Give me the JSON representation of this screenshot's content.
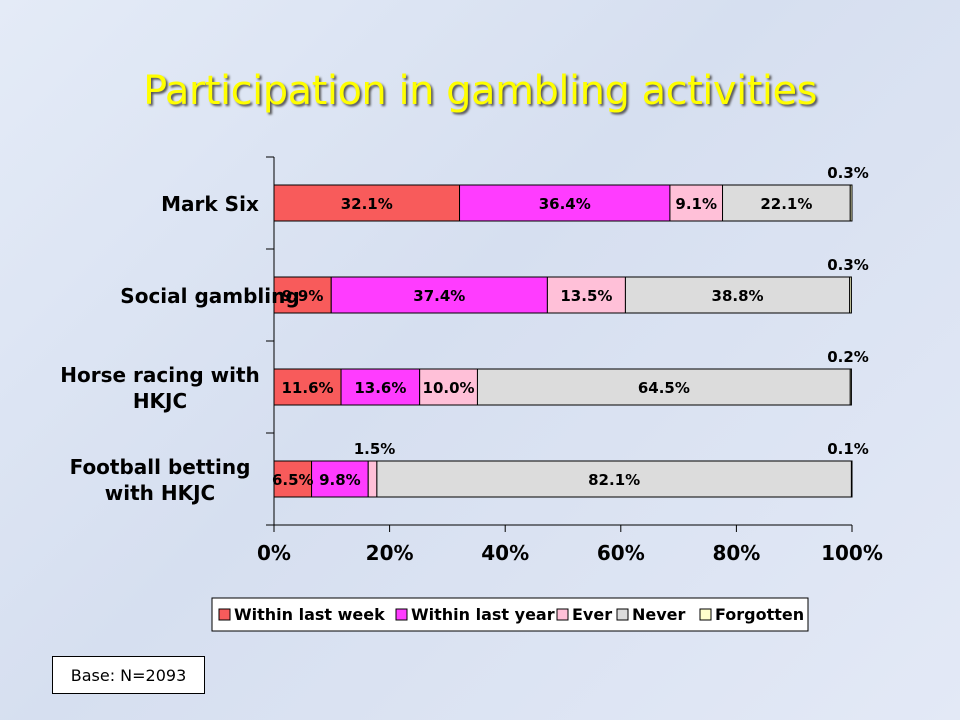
{
  "slide": {
    "title": "Participation in gambling activities",
    "base_note": "Base: N=2093"
  },
  "chart_data": {
    "type": "bar",
    "orientation": "horizontal",
    "stacked": true,
    "categories": [
      [
        "Mark Six"
      ],
      [
        "Social gambling"
      ],
      [
        "Horse racing with",
        "HKJC"
      ],
      [
        "Football betting",
        "with HKJC"
      ]
    ],
    "series": [
      {
        "name": "Within last week",
        "color": "#f85b5b",
        "values": [
          32.1,
          9.9,
          11.6,
          6.5
        ]
      },
      {
        "name": "Within last year",
        "color": "#ff3cff",
        "values": [
          36.4,
          37.4,
          13.6,
          9.8
        ]
      },
      {
        "name": "Ever",
        "color": "#ffc0d8",
        "values": [
          9.1,
          13.5,
          10.0,
          1.5
        ]
      },
      {
        "name": "Never",
        "color": "#dcdcdc",
        "values": [
          22.1,
          38.8,
          64.5,
          82.1
        ]
      },
      {
        "name": "Forgotten",
        "color": "#ffffcc",
        "values": [
          0.3,
          0.3,
          0.2,
          0.1
        ]
      }
    ],
    "data_labels": [
      [
        "32.1%",
        "36.4%",
        "9.1%",
        "22.1%",
        "0.3%"
      ],
      [
        "9.9%",
        "37.4%",
        "13.5%",
        "38.8%",
        "0.3%"
      ],
      [
        "11.6%",
        "13.6%",
        "10.0%",
        "64.5%",
        "0.2%"
      ],
      [
        "6.5%",
        "9.8%",
        "1.5%",
        "82.1%",
        "0.1%"
      ]
    ],
    "xlim": [
      0,
      100
    ],
    "xticks": [
      "0%",
      "20%",
      "40%",
      "60%",
      "80%",
      "100%"
    ],
    "grid": false,
    "legend": "bottom"
  }
}
